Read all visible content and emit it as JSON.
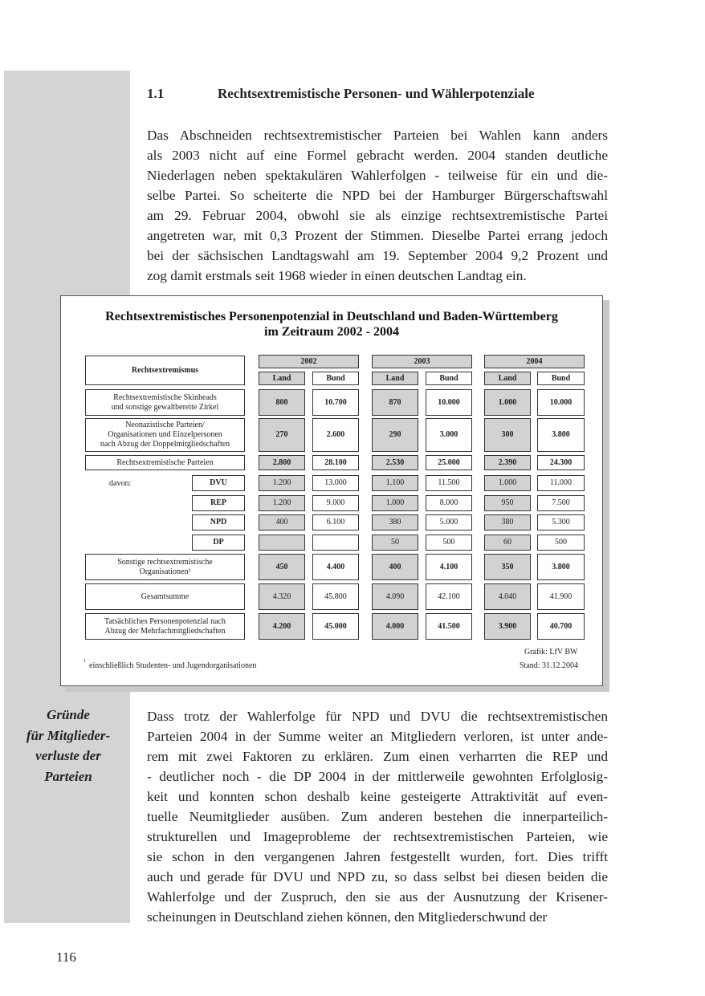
{
  "section": {
    "number": "1.1",
    "title": "Rechtsextremistische Personen- und Wählerpotenziale"
  },
  "paragraph1": [
    "Das Abschneiden rechtsextremistischer Parteien bei Wahlen kann anders",
    "als 2003 nicht auf eine Formel gebracht werden. 2004 standen deutliche",
    "Niederlagen neben spektakulären Wahlerfolgen - teilweise für ein und die-",
    "selbe Partei. So scheiterte die NPD bei der Hamburger Bürgerschaftswahl",
    "am 29. Februar 2004, obwohl sie als einzige rechtsextremistische Partei",
    "angetreten war, mit 0,3 Prozent der Stimmen. Dieselbe Partei errang jedoch",
    "bei der sächsischen Landtagswahl am 19. September 2004 9,2 Prozent und",
    "zog damit erstmals seit 1968 wieder in einen deutschen Landtag ein."
  ],
  "figure": {
    "title_line1": "Rechtsextremistisches Personenpotenzial in Deutschland und Baden-Württemberg",
    "title_line2": "im Zeitraum 2002 - 2004",
    "header_label": "Rechtsextremismus",
    "years": [
      "2002",
      "2003",
      "2004"
    ],
    "sub_headers": [
      "Land",
      "Bund"
    ],
    "davon_label": "davon:",
    "rows": [
      {
        "label": "Rechtsextremistische Skinheads\nund sonstige gewaltbereite Zirkel",
        "values": [
          "800",
          "10.700",
          "870",
          "10.000",
          "1.000",
          "10.000"
        ],
        "bold": true
      },
      {
        "label": "Neonazistische Parteien/\nOrganisationen und Einzelpersonen\nnach Abzug der Doppelmitgliedschaften",
        "values": [
          "270",
          "2.600",
          "290",
          "3.000",
          "300",
          "3.800"
        ],
        "bold": true
      },
      {
        "label": "Rechtsextremistische Parteien",
        "values": [
          "2.800",
          "28.100",
          "2.530",
          "25.000",
          "2.390",
          "24.300"
        ],
        "bold": true
      },
      {
        "label": "DVU",
        "sub": true,
        "values": [
          "1.200",
          "13.000",
          "1.100",
          "11.500",
          "1.000",
          "11.000"
        ],
        "bold": false
      },
      {
        "label": "REP",
        "sub": true,
        "values": [
          "1.200",
          "9.000",
          "1.000",
          "8.000",
          "950",
          "7.500"
        ],
        "bold": false
      },
      {
        "label": "NPD",
        "sub": true,
        "values": [
          "400",
          "6.100",
          "380",
          "5.000",
          "380",
          "5.300"
        ],
        "bold": false
      },
      {
        "label": "DP",
        "sub": true,
        "values": [
          "",
          "",
          "50",
          "500",
          "60",
          "500"
        ],
        "bold": false
      },
      {
        "label": "Sonstige rechtsextremistische\nOrganisationen¹",
        "values": [
          "450",
          "4.400",
          "400",
          "4.100",
          "350",
          "3.800"
        ],
        "bold": true
      },
      {
        "label": "Gesamtsumme",
        "values": [
          "4.320",
          "45.800",
          "4.090",
          "42.100",
          "4.040",
          "41.900"
        ],
        "bold": false
      },
      {
        "label": "Tatsächliches Personenpotenzial nach\nAbzug der Mehrfachmitgliedschaften",
        "values": [
          "4.200",
          "45.000",
          "4.000",
          "41.500",
          "3.900",
          "40.700"
        ],
        "bold": true
      }
    ],
    "credit": "Grafik: LfV BW",
    "footnote_mark": "1",
    "footnote": "einschließlich Studenten- und Jugendorganisationen",
    "stand": "Stand: 31.12.2004"
  },
  "margin_note": [
    "Gründe",
    "für Mitglieder-",
    "verluste der",
    "Parteien"
  ],
  "paragraph2": [
    "Dass trotz der Wahlerfolge für NPD und DVU die rechtsextremistischen",
    "Parteien 2004 in der Summe weiter an Mitgliedern verloren, ist unter ande-",
    "rem mit zwei Faktoren zu erklären. Zum einen verharrten die REP und",
    "- deutlicher noch - die DP 2004 in der mittlerweile gewohnten Erfolglosig-",
    "keit und konnten schon deshalb keine gesteigerte Attraktivität auf even-",
    "tuelle Neumitglieder ausüben. Zum anderen bestehen die innerparteilich-",
    "strukturellen und Imageprobleme der rechtsextremistischen Parteien, wie",
    "sie schon in den vergangenen Jahren festgestellt wurden, fort. Dies trifft",
    "auch und gerade für DVU und NPD zu, so dass selbst bei diesen beiden die",
    "Wahlerfolge und der Zuspruch, den sie aus der Ausnutzung der Krisener-",
    "scheinungen in Deutschland ziehen können, den Mitgliederschwund der"
  ],
  "page_number": "116"
}
